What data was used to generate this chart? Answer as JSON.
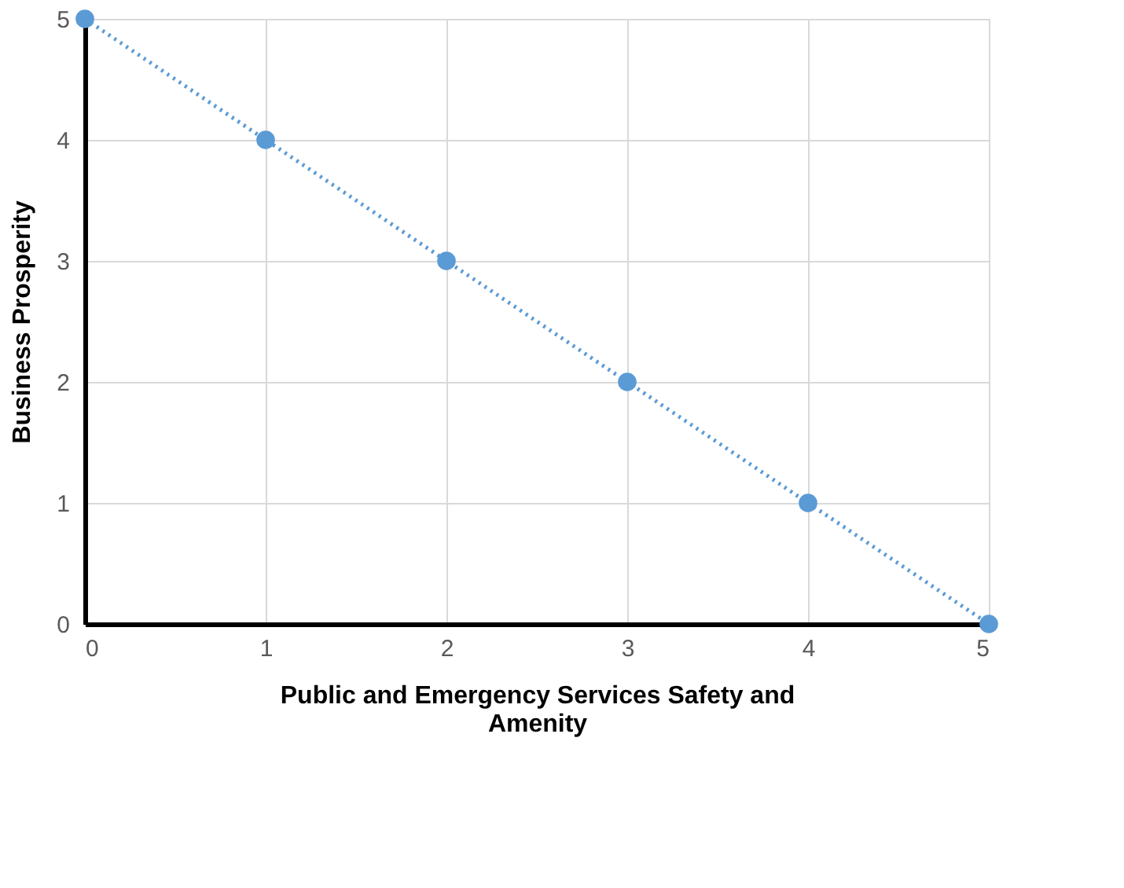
{
  "chart_data": {
    "type": "line",
    "xlabel": "Public and Emergency Services Safety and Amenity",
    "ylabel": "Business Prosperity",
    "x": [
      0,
      1,
      2,
      3,
      4,
      5
    ],
    "series": [
      {
        "color": "#5b9bd5",
        "values": [
          5,
          4,
          3,
          2,
          1,
          0
        ]
      }
    ],
    "xlim": [
      0,
      5
    ],
    "ylim": [
      0,
      5
    ],
    "xticks": [
      0,
      1,
      2,
      3,
      4,
      5
    ],
    "yticks": [
      0,
      1,
      2,
      3,
      4,
      5
    ],
    "grid": true,
    "marker": "circle",
    "line_style": "dotted"
  }
}
